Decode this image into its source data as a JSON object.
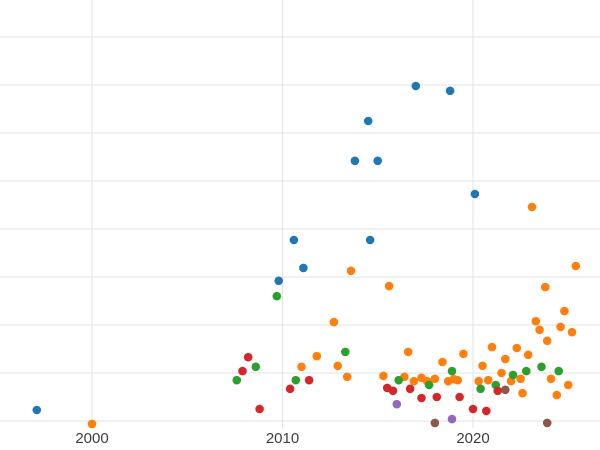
{
  "chart_data": {
    "type": "scatter",
    "title": "",
    "xlabel": "",
    "ylabel": "",
    "grid": true,
    "legend": "none",
    "background": "#ffffff",
    "gridline_color": "#e3e3e3",
    "tick_label_color": "#3d3d3d",
    "x_ticks": [
      2000,
      2010,
      2020
    ],
    "x_tick_labels": [
      "2000",
      "2010",
      "2020"
    ],
    "x_range": [
      1995.17,
      2026.67
    ],
    "y_range": [
      -0.604,
      8.771
    ],
    "y_gridlines": [
      0,
      1,
      2,
      3,
      4,
      5,
      6,
      7,
      8
    ],
    "point_radius": 4.3,
    "series": [
      {
        "name": "series-blue",
        "color": "#1f77b4",
        "points": [
          [
            1997.1,
            0.23
          ],
          [
            2009.8,
            2.92
          ],
          [
            2010.6,
            3.77
          ],
          [
            2011.1,
            3.19
          ],
          [
            2013.8,
            5.42
          ],
          [
            2014.5,
            6.25
          ],
          [
            2014.6,
            3.77
          ],
          [
            2015.0,
            5.42
          ],
          [
            2017.0,
            6.98
          ],
          [
            2018.8,
            6.88
          ],
          [
            2020.1,
            4.73
          ]
        ]
      },
      {
        "name": "series-orange",
        "color": "#ff7f0e",
        "points": [
          [
            2000.0,
            -0.06
          ],
          [
            2011.0,
            1.13
          ],
          [
            2011.8,
            1.35
          ],
          [
            2012.7,
            2.06
          ],
          [
            2012.9,
            1.15
          ],
          [
            2013.4,
            0.92
          ],
          [
            2013.6,
            3.13
          ],
          [
            2015.3,
            0.94
          ],
          [
            2015.6,
            2.81
          ],
          [
            2016.4,
            0.92
          ],
          [
            2016.6,
            1.44
          ],
          [
            2016.9,
            0.83
          ],
          [
            2017.3,
            0.9
          ],
          [
            2017.6,
            0.83
          ],
          [
            2018.0,
            0.88
          ],
          [
            2018.4,
            1.23
          ],
          [
            2018.7,
            0.83
          ],
          [
            2019.0,
            0.87
          ],
          [
            2019.2,
            0.85
          ],
          [
            2019.5,
            1.4
          ],
          [
            2020.3,
            0.83
          ],
          [
            2020.5,
            1.15
          ],
          [
            2020.8,
            0.85
          ],
          [
            2021.0,
            1.54
          ],
          [
            2021.5,
            1.0
          ],
          [
            2021.7,
            1.29
          ],
          [
            2022.0,
            0.83
          ],
          [
            2022.3,
            1.52
          ],
          [
            2022.5,
            0.88
          ],
          [
            2022.6,
            0.58
          ],
          [
            2022.9,
            1.38
          ],
          [
            2023.1,
            4.46
          ],
          [
            2023.3,
            2.08
          ],
          [
            2023.5,
            1.9
          ],
          [
            2023.8,
            2.79
          ],
          [
            2023.9,
            1.67
          ],
          [
            2024.1,
            0.88
          ],
          [
            2024.4,
            0.54
          ],
          [
            2024.6,
            1.96
          ],
          [
            2024.8,
            2.29
          ],
          [
            2025.0,
            0.75
          ],
          [
            2025.2,
            1.85
          ],
          [
            2025.4,
            3.23
          ]
        ]
      },
      {
        "name": "series-green",
        "color": "#2ca02c",
        "points": [
          [
            2007.6,
            0.85
          ],
          [
            2008.6,
            1.13
          ],
          [
            2009.7,
            2.6
          ],
          [
            2010.7,
            0.85
          ],
          [
            2013.3,
            1.44
          ],
          [
            2016.1,
            0.85
          ],
          [
            2017.7,
            0.75
          ],
          [
            2018.9,
            1.04
          ],
          [
            2020.4,
            0.67
          ],
          [
            2021.2,
            0.75
          ],
          [
            2022.1,
            0.96
          ],
          [
            2022.8,
            1.04
          ],
          [
            2023.6,
            1.13
          ],
          [
            2024.5,
            1.04
          ]
        ]
      },
      {
        "name": "series-red",
        "color": "#d62728",
        "points": [
          [
            2007.9,
            1.04
          ],
          [
            2008.2,
            1.33
          ],
          [
            2008.8,
            0.25
          ],
          [
            2010.4,
            0.67
          ],
          [
            2011.4,
            0.85
          ],
          [
            2015.5,
            0.69
          ],
          [
            2015.8,
            0.63
          ],
          [
            2016.7,
            0.67
          ],
          [
            2017.3,
            0.48
          ],
          [
            2018.1,
            0.5
          ],
          [
            2019.3,
            0.5
          ],
          [
            2020.0,
            0.25
          ],
          [
            2020.7,
            0.21
          ],
          [
            2021.3,
            0.63
          ]
        ]
      },
      {
        "name": "series-purple",
        "color": "#9467bd",
        "points": [
          [
            2016.0,
            0.35
          ],
          [
            2018.9,
            0.04
          ]
        ]
      },
      {
        "name": "series-brown",
        "color": "#8c564b",
        "points": [
          [
            2018.0,
            -0.04
          ],
          [
            2021.7,
            0.65
          ],
          [
            2023.9,
            -0.04
          ]
        ]
      }
    ]
  }
}
